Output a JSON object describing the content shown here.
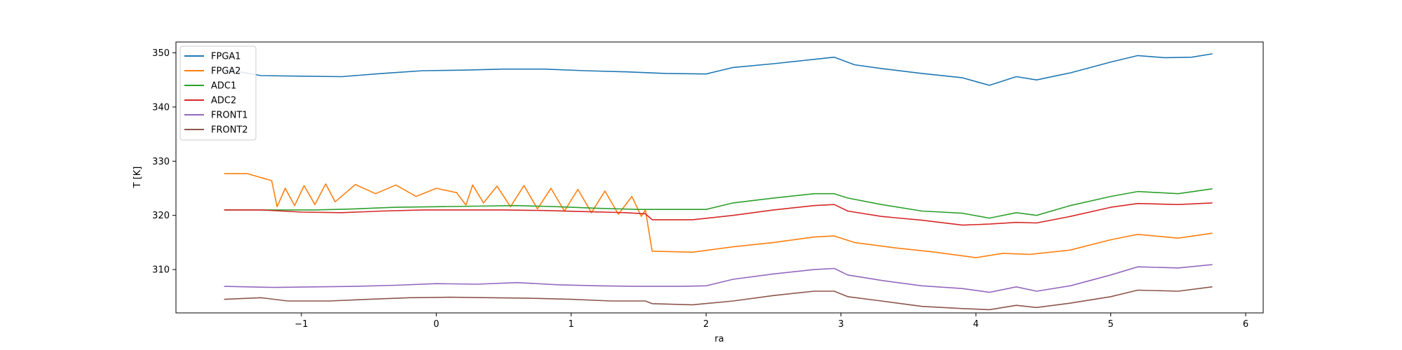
{
  "chart_data": {
    "type": "line",
    "title": "",
    "xlabel": "ra",
    "ylabel": "T [K]",
    "xlim": [
      -1.93,
      6.13
    ],
    "ylim": [
      302.0,
      352.0
    ],
    "xticks": [
      -1,
      0,
      1,
      2,
      3,
      4,
      5,
      6
    ],
    "xtick_labels": [
      "−1",
      "0",
      "1",
      "2",
      "3",
      "4",
      "5",
      "6"
    ],
    "yticks": [
      310,
      320,
      330,
      340,
      350
    ],
    "ytick_labels": [
      "310",
      "320",
      "330",
      "340",
      "350"
    ],
    "grid": false,
    "legend_position": "upper-left",
    "series": [
      {
        "name": "FPGA1",
        "color": "#1f77b4",
        "x": [
          -1.57,
          -1.3,
          -1.0,
          -0.7,
          -0.4,
          -0.1,
          0.2,
          0.5,
          0.8,
          1.1,
          1.4,
          1.7,
          2.0,
          2.2,
          2.5,
          2.8,
          2.95,
          3.1,
          3.3,
          3.6,
          3.9,
          4.1,
          4.3,
          4.45,
          4.7,
          5.0,
          5.2,
          5.4,
          5.6,
          5.75
        ],
        "y": [
          347.0,
          345.8,
          345.7,
          345.6,
          346.2,
          346.7,
          346.8,
          347.0,
          347.0,
          346.7,
          346.5,
          346.2,
          346.1,
          347.3,
          348.0,
          348.8,
          349.2,
          347.8,
          347.1,
          346.2,
          345.4,
          344.0,
          345.6,
          345.0,
          346.3,
          348.3,
          349.5,
          349.1,
          349.2,
          349.8
        ]
      },
      {
        "name": "FPGA2",
        "color": "#ff7f0e",
        "x": [
          -1.57,
          -1.4,
          -1.22,
          -1.18,
          -1.12,
          -1.05,
          -0.98,
          -0.9,
          -0.82,
          -0.75,
          -0.6,
          -0.45,
          -0.3,
          -0.15,
          0.0,
          0.15,
          0.22,
          0.27,
          0.35,
          0.45,
          0.55,
          0.65,
          0.75,
          0.85,
          0.95,
          1.05,
          1.15,
          1.25,
          1.35,
          1.45,
          1.52,
          1.55,
          1.6,
          1.9,
          2.2,
          2.5,
          2.8,
          2.95,
          3.1,
          3.4,
          3.7,
          4.0,
          4.2,
          4.4,
          4.7,
          5.0,
          5.2,
          5.5,
          5.75
        ],
        "y": [
          327.7,
          327.7,
          326.4,
          321.6,
          325.0,
          321.8,
          325.5,
          322.0,
          325.8,
          322.5,
          325.7,
          324.0,
          325.6,
          323.5,
          325.0,
          324.2,
          321.9,
          325.6,
          322.3,
          325.4,
          321.6,
          325.5,
          321.2,
          325.0,
          320.8,
          324.8,
          320.5,
          324.5,
          320.2,
          323.5,
          319.8,
          321.0,
          313.4,
          313.2,
          314.2,
          315.0,
          316.0,
          316.2,
          315.0,
          314.0,
          313.2,
          312.2,
          313.0,
          312.8,
          313.6,
          315.5,
          316.5,
          315.8,
          316.7
        ]
      },
      {
        "name": "ADC1",
        "color": "#2ca02c",
        "x": [
          -1.57,
          -1.2,
          -0.9,
          -0.6,
          -0.3,
          0.0,
          0.3,
          0.6,
          0.9,
          1.2,
          1.5,
          1.8,
          2.0,
          2.2,
          2.5,
          2.8,
          2.95,
          3.05,
          3.3,
          3.6,
          3.9,
          4.1,
          4.3,
          4.45,
          4.7,
          5.0,
          5.2,
          5.5,
          5.75
        ],
        "y": [
          321.0,
          321.0,
          321.0,
          321.2,
          321.5,
          321.6,
          321.7,
          321.8,
          321.6,
          321.3,
          321.1,
          321.1,
          321.1,
          322.3,
          323.2,
          324.0,
          324.0,
          323.2,
          322.0,
          320.8,
          320.4,
          319.5,
          320.5,
          320.0,
          321.8,
          323.5,
          324.4,
          324.0,
          324.9
        ]
      },
      {
        "name": "ADC2",
        "color": "#d62728",
        "x": [
          -1.57,
          -1.3,
          -1.0,
          -0.7,
          -0.4,
          -0.1,
          0.2,
          0.5,
          0.8,
          1.1,
          1.4,
          1.55,
          1.6,
          1.9,
          2.2,
          2.5,
          2.8,
          2.95,
          3.05,
          3.3,
          3.6,
          3.9,
          4.1,
          4.3,
          4.45,
          4.7,
          5.0,
          5.2,
          5.5,
          5.75
        ],
        "y": [
          321.0,
          321.0,
          320.6,
          320.5,
          320.8,
          321.0,
          321.0,
          321.0,
          320.9,
          320.7,
          320.5,
          320.3,
          319.2,
          319.2,
          320.0,
          321.0,
          321.8,
          322.0,
          320.8,
          319.8,
          319.1,
          318.2,
          318.4,
          318.7,
          318.6,
          319.8,
          321.5,
          322.2,
          322.0,
          322.3
        ]
      },
      {
        "name": "FRONT1",
        "color": "#9467bd",
        "x": [
          -1.57,
          -1.2,
          -0.9,
          -0.6,
          -0.3,
          0.0,
          0.3,
          0.6,
          0.9,
          1.2,
          1.5,
          1.8,
          2.0,
          2.2,
          2.5,
          2.8,
          2.95,
          3.05,
          3.3,
          3.6,
          3.9,
          4.1,
          4.3,
          4.45,
          4.7,
          5.0,
          5.2,
          5.5,
          5.75
        ],
        "y": [
          306.9,
          306.7,
          306.8,
          306.9,
          307.1,
          307.4,
          307.3,
          307.6,
          307.2,
          307.0,
          306.9,
          306.9,
          307.0,
          308.2,
          309.2,
          310.0,
          310.2,
          309.0,
          308.0,
          307.0,
          306.5,
          305.8,
          306.8,
          306.0,
          307.0,
          309.0,
          310.5,
          310.3,
          310.9
        ]
      },
      {
        "name": "FRONT2",
        "color": "#8c564b",
        "x": [
          -1.57,
          -1.3,
          -1.1,
          -0.8,
          -0.5,
          -0.2,
          0.1,
          0.4,
          0.7,
          1.0,
          1.3,
          1.55,
          1.6,
          1.9,
          2.2,
          2.5,
          2.8,
          2.95,
          3.05,
          3.3,
          3.6,
          3.9,
          4.1,
          4.3,
          4.45,
          4.7,
          5.0,
          5.2,
          5.5,
          5.75
        ],
        "y": [
          304.5,
          304.8,
          304.2,
          304.2,
          304.5,
          304.8,
          304.9,
          304.8,
          304.7,
          304.5,
          304.2,
          304.2,
          303.7,
          303.5,
          304.2,
          305.2,
          306.0,
          306.0,
          305.0,
          304.2,
          303.2,
          302.8,
          302.6,
          303.4,
          303.0,
          303.8,
          305.0,
          306.2,
          306.0,
          306.8
        ]
      }
    ]
  }
}
